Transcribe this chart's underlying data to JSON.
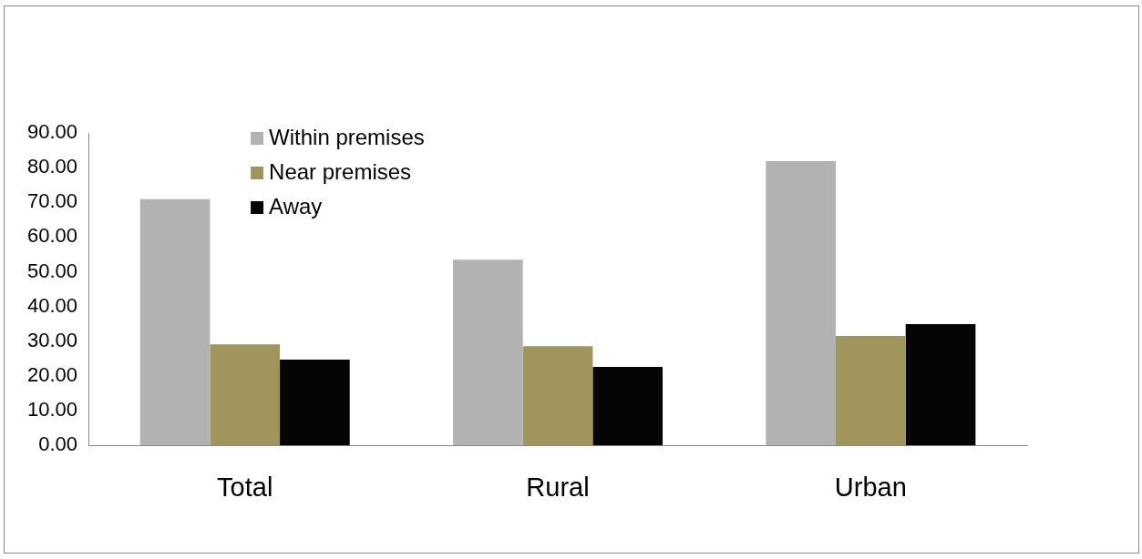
{
  "chart_data": {
    "type": "bar",
    "categories": [
      "Total",
      "Rural",
      "Urban"
    ],
    "series": [
      {
        "name": "Within premises",
        "color": "#b2b2b2",
        "values": [
          70.9,
          53.5,
          81.9
        ]
      },
      {
        "name": "Near premises",
        "color": "#a0955c",
        "values": [
          29.1,
          28.6,
          31.5
        ]
      },
      {
        "name": "Away",
        "color": "#050505",
        "values": [
          24.7,
          22.6,
          34.9
        ]
      }
    ],
    "ylim": [
      0,
      90
    ],
    "yticks": [
      {
        "value": 0,
        "label": "0.00"
      },
      {
        "value": 10,
        "label": "10.00"
      },
      {
        "value": 20,
        "label": "20.00"
      },
      {
        "value": 30,
        "label": "30.00"
      },
      {
        "value": 40,
        "label": "40.00"
      },
      {
        "value": 50,
        "label": "50.00"
      },
      {
        "value": 60,
        "label": "60.00"
      },
      {
        "value": 70,
        "label": "70.00"
      },
      {
        "value": 80,
        "label": "80.00"
      },
      {
        "value": 90,
        "label": "90.00"
      }
    ],
    "grid": false,
    "legend": "top left"
  }
}
